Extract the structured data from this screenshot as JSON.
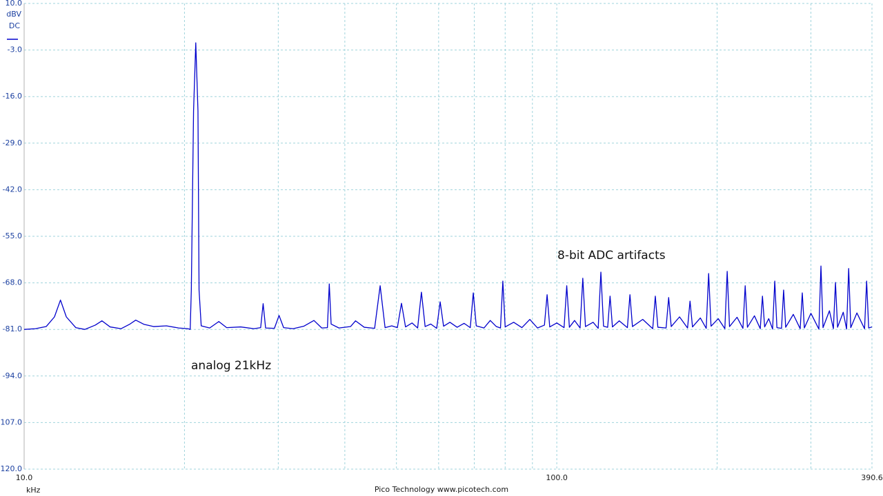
{
  "chart_data": {
    "type": "line",
    "y_unit": "dBV",
    "coupling": "DC",
    "x_unit": "kHz",
    "footer": "Pico Technology  www.picotech.com",
    "annotations": [
      "analog 21kHz",
      "8-bit ADC artifacts"
    ],
    "color": "#0000cc",
    "xscale": "log",
    "grid": true,
    "xlim": [
      10,
      390.6
    ],
    "ylim": [
      -120,
      10
    ],
    "xticks": [
      {
        "value": 10,
        "label": "10.0"
      },
      {
        "value": 20,
        "label": null
      },
      {
        "value": 30,
        "label": null
      },
      {
        "value": 40,
        "label": null
      },
      {
        "value": 50,
        "label": null
      },
      {
        "value": 60,
        "label": null
      },
      {
        "value": 70,
        "label": null
      },
      {
        "value": 80,
        "label": null
      },
      {
        "value": 90,
        "label": null
      },
      {
        "value": 100,
        "label": "100.0"
      },
      {
        "value": 200,
        "label": null
      },
      {
        "value": 300,
        "label": null
      },
      {
        "value": 390.6,
        "label": "390.6"
      }
    ],
    "yticks": [
      {
        "value": 10,
        "label": "10.0"
      },
      {
        "value": -3,
        "label": "-3.0"
      },
      {
        "value": -16,
        "label": "-16.0"
      },
      {
        "value": -29,
        "label": "-29.0"
      },
      {
        "value": -42,
        "label": "-42.0"
      },
      {
        "value": -55,
        "label": "-55.0"
      },
      {
        "value": -68,
        "label": "-68.0"
      },
      {
        "value": -81,
        "label": "-81.0"
      },
      {
        "value": -94,
        "label": "-94.0"
      },
      {
        "value": -107,
        "label": "-107.0"
      },
      {
        "value": -120,
        "label": "-120.0"
      }
    ],
    "x": [
      10.0,
      10.5,
      11.0,
      11.4,
      11.7,
      12.0,
      12.5,
      13.0,
      13.6,
      14.0,
      14.5,
      15.2,
      15.8,
      16.2,
      16.8,
      17.5,
      18.5,
      19.5,
      20.3,
      20.5,
      20.6,
      20.8,
      21.0,
      21.2,
      21.3,
      21.5,
      22.3,
      23.2,
      24.0,
      25.5,
      27.0,
      27.8,
      28.1,
      28.4,
      29.5,
      30.1,
      30.7,
      32.0,
      33.5,
      35.0,
      36.2,
      37.1,
      37.4,
      37.7,
      39.0,
      41.0,
      41.9,
      43.5,
      45.5,
      46.6,
      47.6,
      49.0,
      50.2,
      51.1,
      52.0,
      53.5,
      54.8,
      55.7,
      56.6,
      58.0,
      59.5,
      60.4,
      61.3,
      63.0,
      65.0,
      67.0,
      68.8,
      69.7,
      70.6,
      73.0,
      75.0,
      77.0,
      78.4,
      79.2,
      80.0,
      83.0,
      86.0,
      89.0,
      92.0,
      94.8,
      95.9,
      97.0,
      100.0,
      103.2,
      104.4,
      105.6,
      108.0,
      110.6,
      111.9,
      113.2,
      117.0,
      119.6,
      121.0,
      122.4,
      124.6,
      125.9,
      127.2,
      131.0,
      135.7,
      137.2,
      138.7,
      145.0,
      151.4,
      153.1,
      154.8,
      160.4,
      162.2,
      164.0,
      170.0,
      176.0,
      177.9,
      179.8,
      186.0,
      190.8,
      192.8,
      194.8,
      201.0,
      206.8,
      208.9,
      211.0,
      218.0,
      223.6,
      225.8,
      228.0,
      235.0,
      241.0,
      243.3,
      245.6,
      250.0,
      254.2,
      256.6,
      259.0,
      264.2,
      266.6,
      269.0,
      278.0,
      286.4,
      289.0,
      291.6,
      300.0,
      310.5,
      313.3,
      316.1,
      325.0,
      330.6,
      333.6,
      336.6,
      345.0,
      350.0,
      353.2,
      356.4,
      366.0,
      378.3,
      381.7,
      385.1,
      390.6
    ],
    "values": [
      -81.0,
      -80.8,
      -80.2,
      -77.5,
      -72.8,
      -77.5,
      -80.5,
      -81.0,
      -79.8,
      -78.6,
      -80.3,
      -80.8,
      -79.5,
      -78.4,
      -79.6,
      -80.2,
      -80.0,
      -80.6,
      -80.8,
      -81.0,
      -70.0,
      -20.0,
      -1.0,
      -20.0,
      -70.0,
      -80.0,
      -80.6,
      -78.8,
      -80.5,
      -80.3,
      -80.8,
      -80.5,
      -73.8,
      -80.6,
      -80.7,
      -77.1,
      -80.5,
      -80.8,
      -80.1,
      -78.5,
      -80.6,
      -80.5,
      -68.3,
      -79.5,
      -80.6,
      -80.2,
      -78.6,
      -80.4,
      -80.7,
      -68.8,
      -80.5,
      -80.0,
      -80.5,
      -73.7,
      -80.3,
      -79.2,
      -80.6,
      -70.6,
      -80.2,
      -79.5,
      -80.7,
      -73.3,
      -80.1,
      -79.0,
      -80.4,
      -79.3,
      -80.5,
      -70.8,
      -80.0,
      -80.6,
      -78.5,
      -80.2,
      -80.6,
      -67.5,
      -80.3,
      -79.0,
      -80.5,
      -78.2,
      -80.6,
      -79.8,
      -71.3,
      -80.3,
      -79.2,
      -80.5,
      -68.8,
      -80.4,
      -78.5,
      -80.6,
      -66.7,
      -80.2,
      -79.0,
      -80.7,
      -65.0,
      -80.1,
      -80.4,
      -71.7,
      -80.3,
      -78.6,
      -80.5,
      -71.3,
      -80.2,
      -78.2,
      -80.8,
      -71.7,
      -80.4,
      -80.6,
      -72.1,
      -80.2,
      -77.5,
      -80.6,
      -73.1,
      -80.3,
      -77.8,
      -80.7,
      -65.4,
      -80.1,
      -78.0,
      -80.8,
      -64.8,
      -80.2,
      -77.6,
      -80.7,
      -68.8,
      -80.4,
      -77.2,
      -80.8,
      -71.7,
      -80.3,
      -78.0,
      -80.9,
      -67.5,
      -80.5,
      -80.7,
      -70.0,
      -80.4,
      -76.8,
      -80.8,
      -70.8,
      -80.6,
      -76.5,
      -80.9,
      -63.3,
      -80.5,
      -75.8,
      -80.8,
      -67.9,
      -80.4,
      -76.2,
      -80.9,
      -64.0,
      -80.5,
      -76.4,
      -80.8,
      -67.5,
      -80.6,
      -80.3
    ]
  }
}
